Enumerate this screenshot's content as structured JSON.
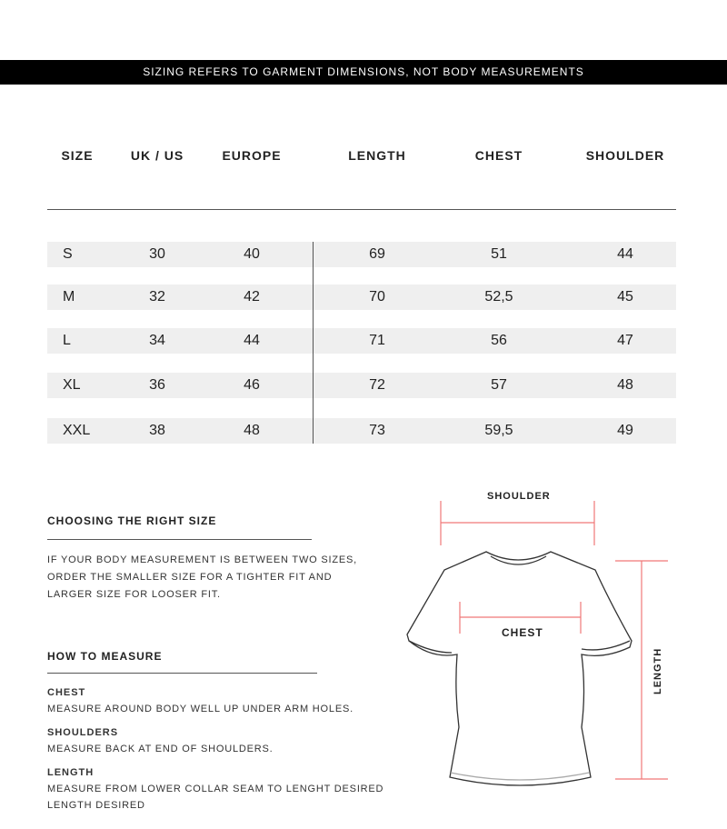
{
  "banner": "SIZING REFERS TO GARMENT DIMENSIONS, NOT BODY MEASUREMENTS",
  "table": {
    "headers": [
      "SIZE",
      "UK / US",
      "EUROPE",
      "LENGTH",
      "CHEST",
      "SHOULDER"
    ],
    "rows": [
      [
        "S",
        "30",
        "40",
        "69",
        "51",
        "44"
      ],
      [
        "M",
        "32",
        "42",
        "70",
        "52,5",
        "45"
      ],
      [
        "L",
        "34",
        "44",
        "71",
        "56",
        "47"
      ],
      [
        "XL",
        "36",
        "46",
        "72",
        "57",
        "48"
      ],
      [
        "XXL",
        "38",
        "48",
        "73",
        "59,5",
        "49"
      ]
    ]
  },
  "choosing": {
    "title": "CHOOSING THE RIGHT SIZE",
    "lines": [
      "IF YOUR BODY MEASUREMENT IS BETWEEN TWO SIZES,",
      "ORDER THE SMALLER SIZE FOR A TIGHTER FIT AND",
      "LARGER SIZE FOR LOOSER FIT."
    ]
  },
  "how": {
    "title": "HOW TO MEASURE",
    "items": [
      {
        "label": "CHEST",
        "text": "MEASURE AROUND BODY WELL UP UNDER ARM HOLES."
      },
      {
        "label": "SHOULDERS",
        "text": "MEASURE BACK AT END OF SHOULDERS."
      },
      {
        "label": "LENGTH",
        "text": "MEASURE FROM LOWER COLLAR SEAM TO LENGHT DESIRED",
        "text2": "LENGTH DESIRED"
      }
    ]
  },
  "diagram": {
    "shoulder": "SHOULDER",
    "chest": "CHEST",
    "length": "LENGTH",
    "measure_color": "#f07878"
  }
}
